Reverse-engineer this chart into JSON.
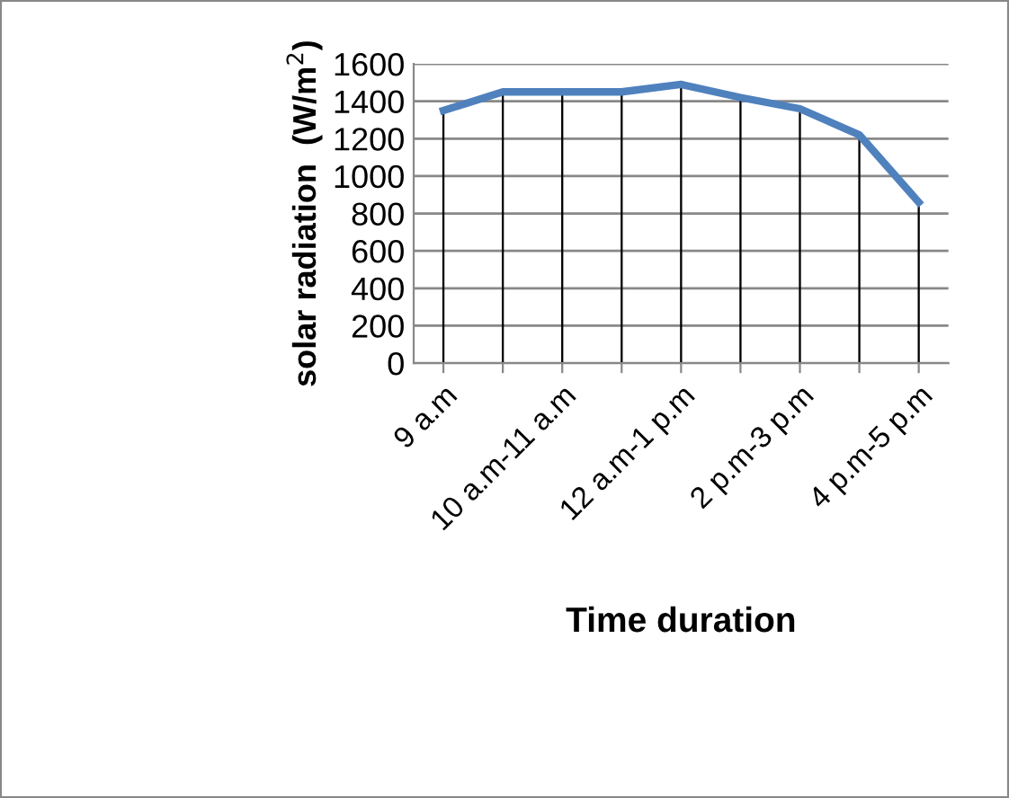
{
  "chart_data": {
    "type": "line",
    "xlabel": "Time duration",
    "ylabel": "solar radiation  (W/m$^{2}$)",
    "categories": [
      "9 a.m",
      null,
      "10 a.m-11 a.m",
      null,
      "12 a.m-1 p.m",
      null,
      "2 p.m-3 p.m",
      null,
      "4 p.m-5 p.m"
    ],
    "series": [
      {
        "color": "#4f81bd",
        "values": [
          1350,
          1450,
          1450,
          1450,
          1490,
          1420,
          1360,
          1220,
          860
        ]
      },
      {
        "type": "bar",
        "color": "#000000",
        "values": [
          1350,
          1450,
          1450,
          1450,
          1490,
          1420,
          1360,
          1220,
          860
        ]
      }
    ],
    "ylim": [
      0,
      1600
    ],
    "yticks": [
      0,
      200,
      400,
      600,
      800,
      1000,
      1200,
      1400,
      1600
    ],
    "grid": "y",
    "legend": false,
    "marker": "none",
    "line_style": "solid"
  }
}
